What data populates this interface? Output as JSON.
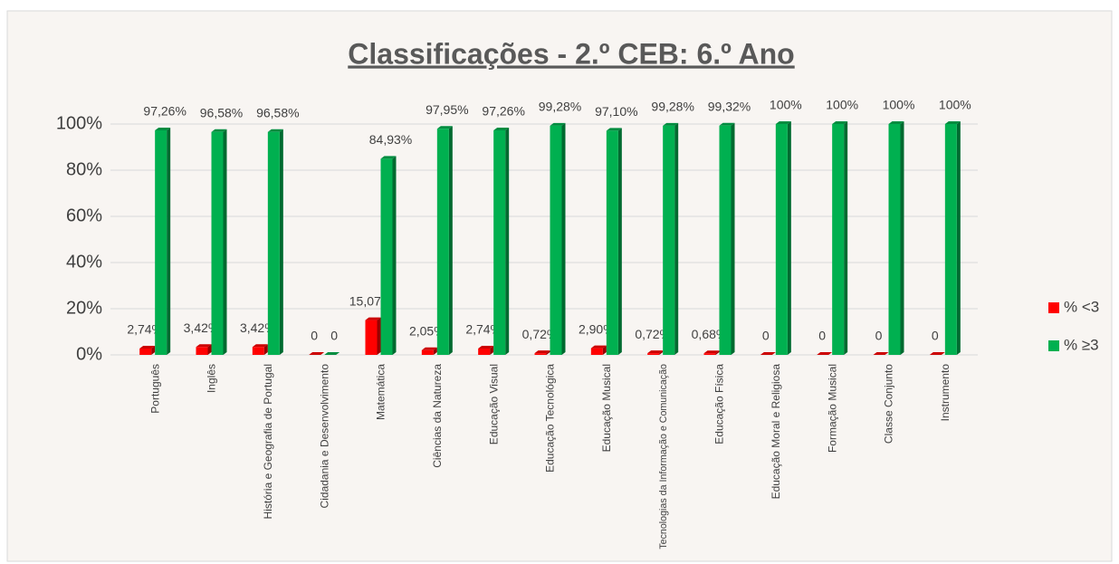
{
  "chart_data": {
    "type": "bar",
    "title": "Classificações - 2.º CEB: 6.º Ano",
    "categories": [
      "Português",
      "Inglês",
      "História e Geografia de Portugal",
      "Cidadania e Desenvolvimento",
      "Matemática",
      "Ciências da Natureza",
      "Educação Visual",
      "Educação Tecnológica",
      "Educação Musical",
      "Tecnologias da Informação e Comunicação",
      "Educação Física",
      "Educação Moral e Religiosa",
      "Formação Musical",
      "Classe Conjunto",
      "Instrumento"
    ],
    "series": [
      {
        "name": "% <3",
        "color": "#ff0000",
        "values": [
          2.74,
          3.42,
          3.42,
          0,
          15.07,
          2.05,
          2.74,
          0.72,
          2.9,
          0.72,
          0.68,
          0,
          0,
          0,
          0
        ],
        "value_labels": [
          "2,74%",
          "3,42%",
          "3,42%",
          "0",
          "15,07%",
          "2,05%",
          "2,74%",
          "0,72%",
          "2,90%",
          "0,72%",
          "0,68%",
          "0",
          "0",
          "0",
          "0"
        ]
      },
      {
        "name": "% ≥3",
        "color": "#00b050",
        "values": [
          97.26,
          96.58,
          96.58,
          0,
          84.93,
          97.95,
          97.26,
          99.28,
          97.1,
          99.28,
          99.32,
          100,
          100,
          100,
          100
        ],
        "value_labels": [
          "97,26%",
          "96,58%",
          "96,58%",
          "0",
          "84,93%",
          "97,95%",
          "97,26%",
          "99,28%",
          "97,10%",
          "99,28%",
          "99,32%",
          "100%",
          "100%",
          "100%",
          "100%"
        ]
      }
    ],
    "ylim": [
      0,
      100
    ],
    "yticks": [
      {
        "value": 0,
        "label": "0%"
      },
      {
        "value": 20,
        "label": "20%"
      },
      {
        "value": 40,
        "label": "40%"
      },
      {
        "value": 60,
        "label": "60%"
      },
      {
        "value": 80,
        "label": "80%"
      },
      {
        "value": 100,
        "label": "100%"
      }
    ],
    "grid": true,
    "legend": "right"
  }
}
